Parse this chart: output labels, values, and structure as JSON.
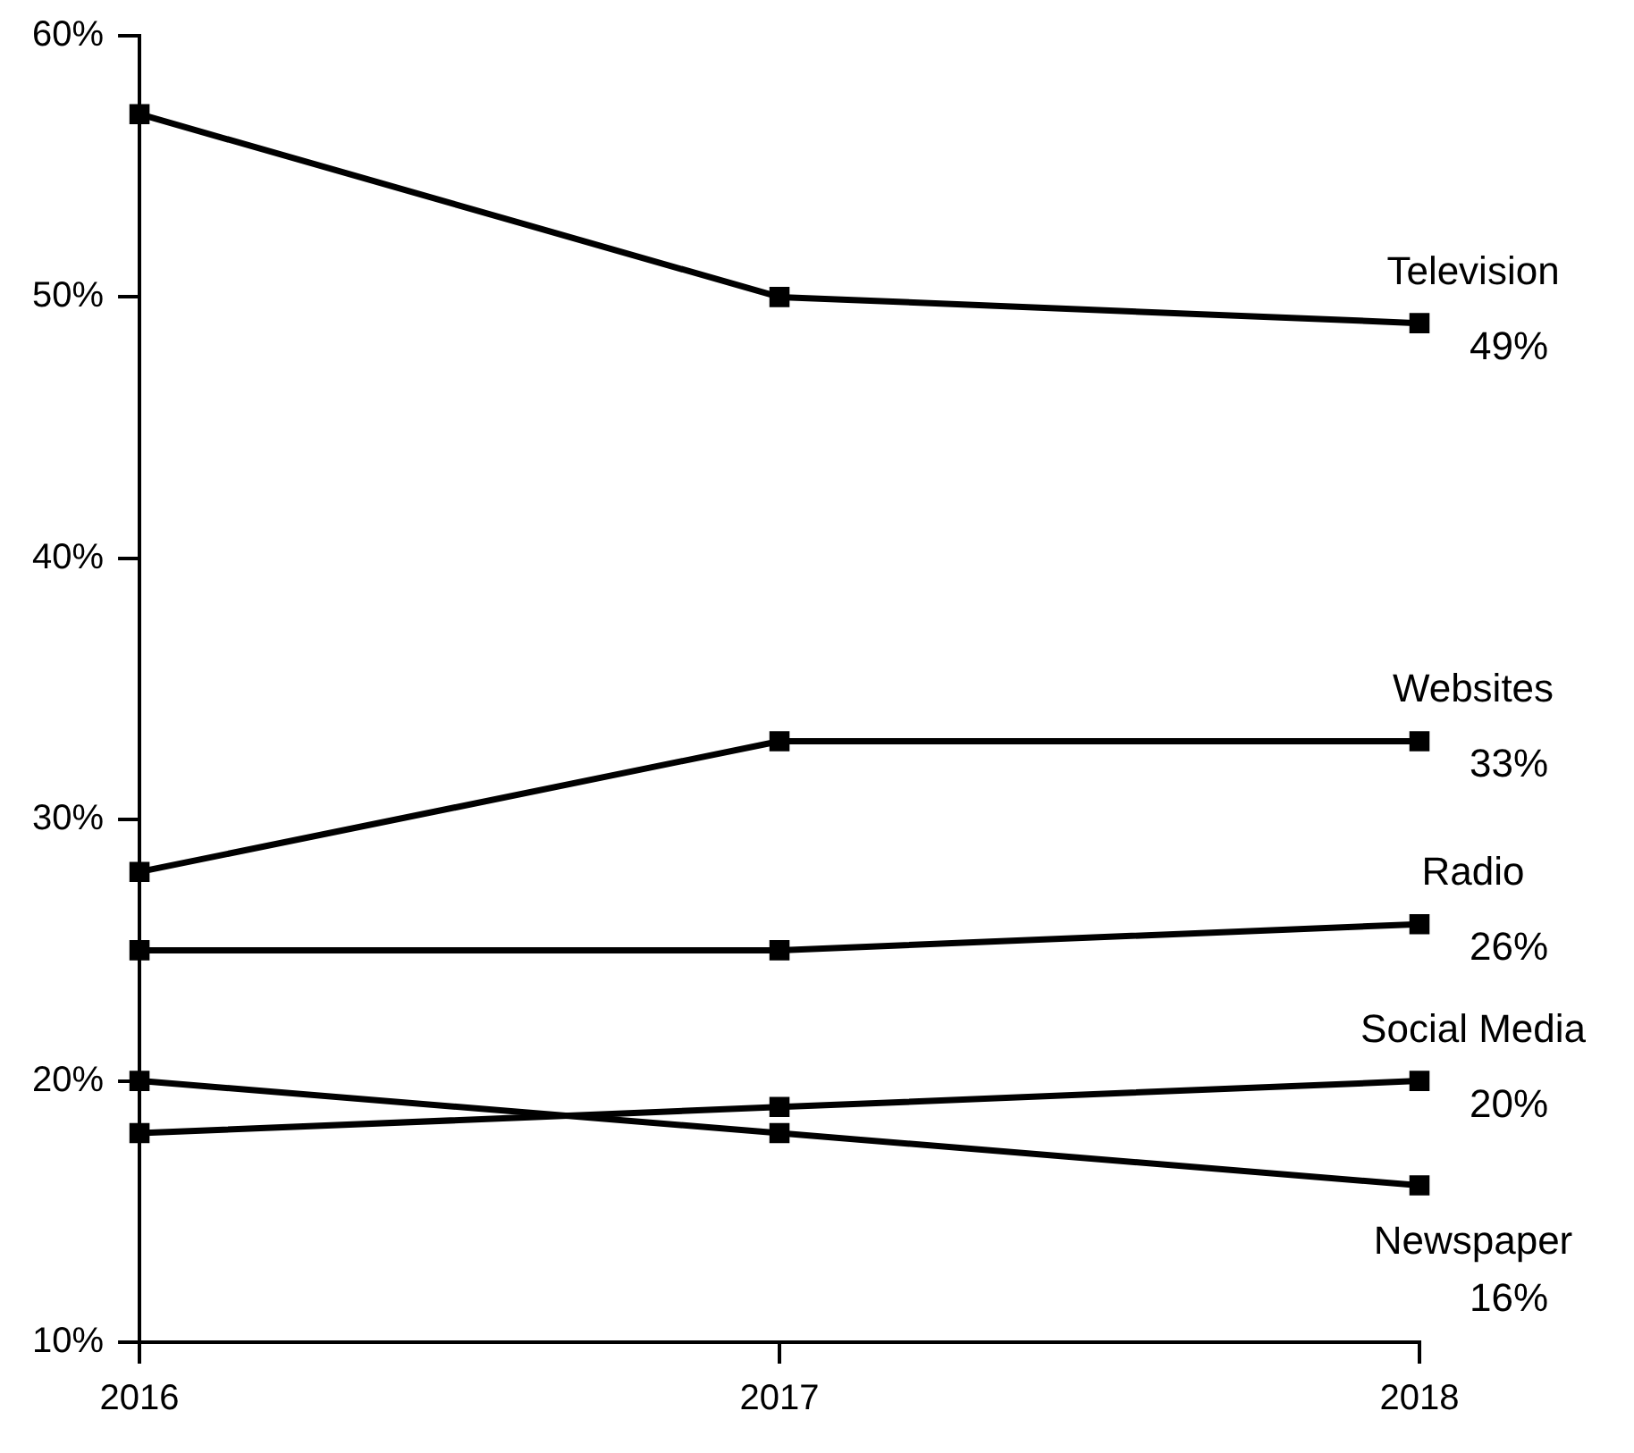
{
  "chart_data": {
    "type": "line",
    "categories": [
      "2016",
      "2017",
      "2018"
    ],
    "series": [
      {
        "name": "Television",
        "color": "#000000",
        "values": [
          57,
          50,
          49
        ],
        "value_labels": [
          null,
          null,
          "49%"
        ]
      },
      {
        "name": "Websites",
        "color": "#000000",
        "values": [
          28,
          33,
          33
        ],
        "value_labels": [
          null,
          null,
          "33%"
        ]
      },
      {
        "name": "Radio",
        "color": "#000000",
        "values": [
          25,
          25,
          26
        ],
        "value_labels": [
          null,
          null,
          "26%"
        ]
      },
      {
        "name": "Social Media",
        "color": "#000000",
        "values": [
          18,
          19,
          20
        ],
        "value_labels": [
          null,
          null,
          "20%"
        ]
      },
      {
        "name": "Newspaper",
        "color": "#000000",
        "values": [
          20,
          18,
          16
        ],
        "value_labels": [
          null,
          null,
          "16%"
        ]
      }
    ],
    "ylim": [
      10,
      60
    ],
    "yticks": [
      {
        "value": 10,
        "label": "10%"
      },
      {
        "value": 20,
        "label": "20%"
      },
      {
        "value": 30,
        "label": "30%"
      },
      {
        "value": 40,
        "label": "40%"
      },
      {
        "value": 50,
        "label": "50%"
      },
      {
        "value": 60,
        "label": "60%"
      }
    ],
    "grid": false,
    "legend": false,
    "marker": "square",
    "line_style": "solid"
  }
}
